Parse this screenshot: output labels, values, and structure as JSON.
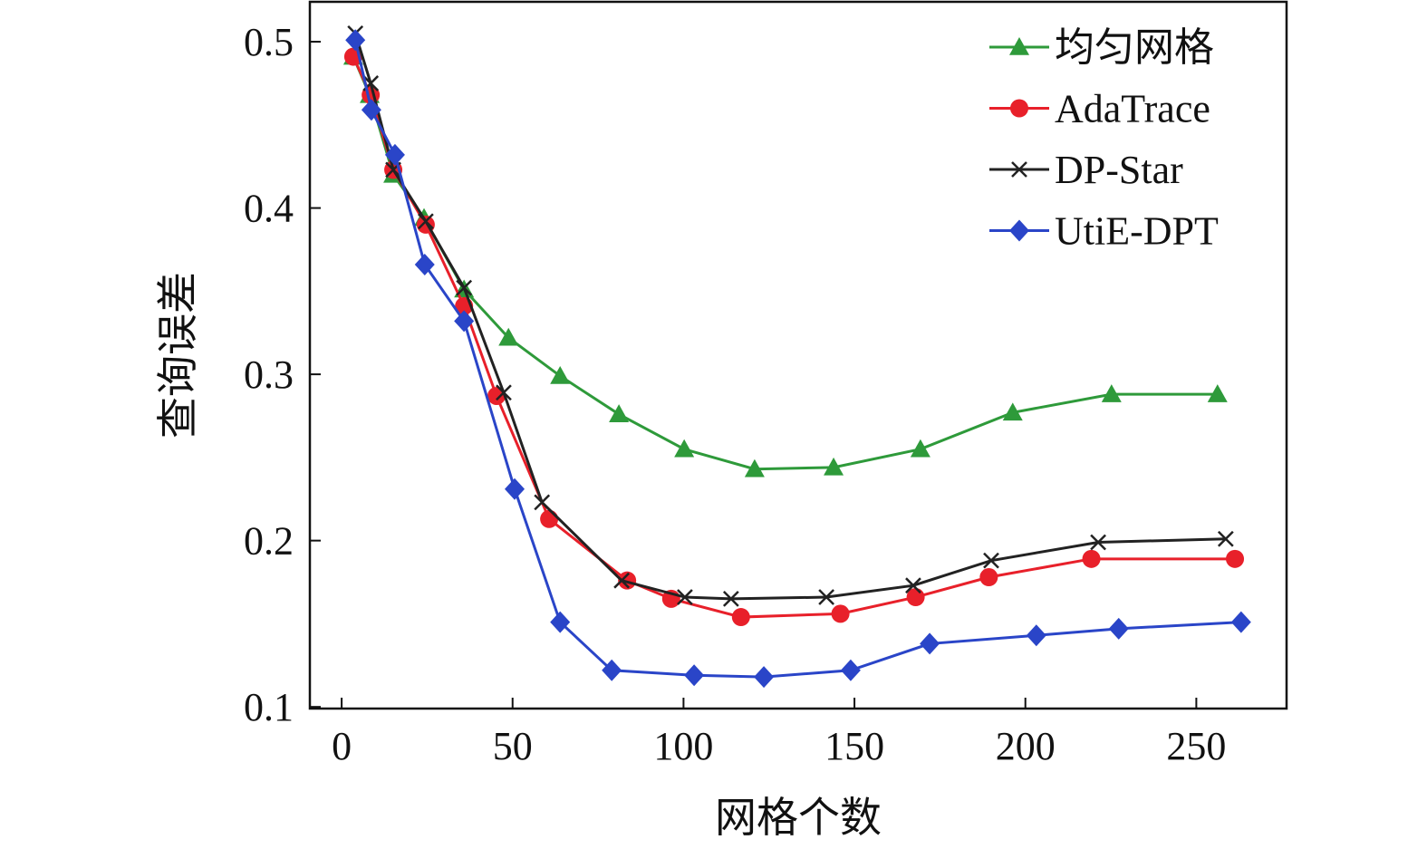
{
  "chart_data": {
    "type": "line",
    "title": "",
    "xlabel": "网格个数",
    "ylabel": "查询误差",
    "xlim": [
      -9.3,
      276.4
    ],
    "ylim": [
      0.099,
      0.524
    ],
    "xticks": [
      0,
      50,
      100,
      150,
      200,
      250
    ],
    "yticks": [
      0.1,
      0.2,
      0.3,
      0.4,
      0.5
    ],
    "xtick_labels": [
      "0",
      "50",
      "100",
      "150",
      "200",
      "250"
    ],
    "ytick_labels": [
      "0.1",
      "0.2",
      "0.3",
      "0.4",
      "0.5"
    ],
    "grid": false,
    "legend_position": "top-right",
    "series": [
      {
        "name": "均匀网格",
        "color": "#2e9a3a",
        "marker": "triangle",
        "x": [
          3.4,
          8.2,
          15.1,
          24.1,
          35.8,
          48.8,
          63.9,
          81.1,
          100.2,
          120.8,
          143.9,
          169.3,
          196.3,
          225.2,
          256.2
        ],
        "y": [
          0.491,
          0.468,
          0.42,
          0.394,
          0.351,
          0.322,
          0.299,
          0.276,
          0.255,
          0.243,
          0.244,
          0.255,
          0.277,
          0.288,
          0.288
        ]
      },
      {
        "name": "AdaTrace",
        "color": "#e8202a",
        "marker": "circle",
        "x": [
          3.4,
          8.5,
          15.1,
          24.6,
          35.8,
          45.3,
          60.7,
          83.5,
          96.4,
          116.8,
          145.9,
          167.9,
          189.3,
          219.3,
          261.3
        ],
        "y": [
          0.491,
          0.468,
          0.423,
          0.39,
          0.341,
          0.287,
          0.213,
          0.176,
          0.165,
          0.154,
          0.156,
          0.166,
          0.178,
          0.189,
          0.189
        ]
      },
      {
        "name": "DP-Star",
        "color": "#222222",
        "marker": "x",
        "x": [
          4.0,
          8.5,
          15.1,
          24.6,
          35.8,
          47.4,
          58.6,
          81.9,
          100.4,
          113.9,
          141.8,
          167.2,
          190.0,
          221.3,
          258.6
        ],
        "y": [
          0.505,
          0.475,
          0.423,
          0.392,
          0.352,
          0.289,
          0.223,
          0.176,
          0.166,
          0.165,
          0.166,
          0.173,
          0.188,
          0.199,
          0.201
        ]
      },
      {
        "name": "UtiE-DPT",
        "color": "#2a45c8",
        "marker": "diamond",
        "x": [
          4.0,
          8.7,
          15.6,
          24.3,
          35.8,
          50.6,
          63.9,
          79.0,
          103.1,
          123.5,
          148.9,
          172.0,
          203.2,
          227.3,
          263.1
        ],
        "y": [
          0.501,
          0.459,
          0.432,
          0.366,
          0.332,
          0.231,
          0.151,
          0.122,
          0.119,
          0.118,
          0.122,
          0.138,
          0.143,
          0.147,
          0.151
        ]
      }
    ]
  }
}
